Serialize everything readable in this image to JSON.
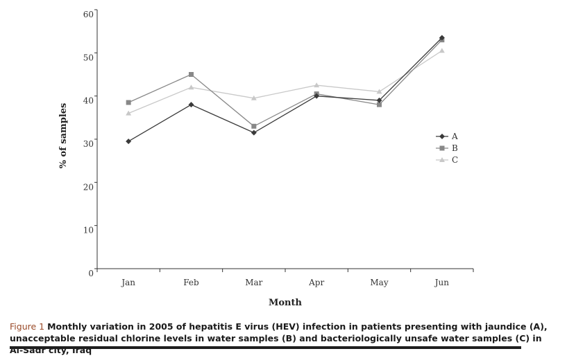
{
  "chart_data": {
    "type": "line",
    "categories": [
      "Jan",
      "Feb",
      "Mar",
      "Apr",
      "May",
      "Jun"
    ],
    "series": [
      {
        "name": "A",
        "values": [
          29.5,
          38,
          31.5,
          40,
          39,
          53.5
        ],
        "color": "#3a3a3a",
        "marker": "diamond"
      },
      {
        "name": "B",
        "values": [
          38.5,
          45,
          33,
          40.5,
          38,
          53
        ],
        "color": "#888888",
        "marker": "square"
      },
      {
        "name": "C",
        "values": [
          36,
          42,
          39.5,
          42.5,
          41,
          50.5
        ],
        "color": "#c8c8c8",
        "marker": "triangle"
      }
    ],
    "xlabel": "Month",
    "ylabel": "% of samples",
    "ylim": [
      0,
      60
    ],
    "yticks": [
      "0",
      "10",
      "20",
      "30",
      "40",
      "50",
      "60"
    ],
    "grid": false,
    "legend_position": "right"
  },
  "caption": {
    "label": "Figure 1",
    "text": "Monthly variation in 2005 of hepatitis E virus (HEV) infection in patients presenting with jaundice (A), unacceptable residual chlorine levels in water samples (B) and bacteriologically unsafe water samples (C) in Al-Sadr city, Iraq"
  }
}
